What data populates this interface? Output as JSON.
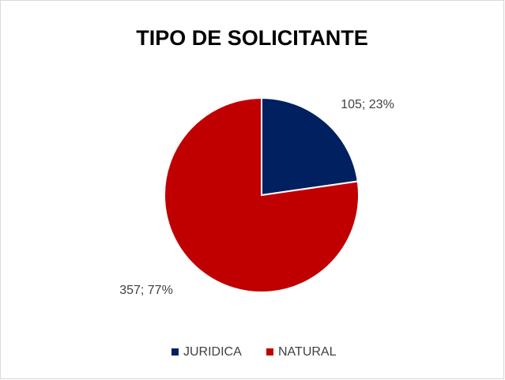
{
  "chart_data": {
    "type": "pie",
    "title": "TIPO DE SOLICITANTE",
    "categories": [
      "JURIDICA",
      "NATURAL"
    ],
    "values": [
      105,
      357
    ],
    "value_labels": [
      "105; 23%",
      "357; 77%"
    ],
    "colors": [
      "#002060",
      "#c00000"
    ],
    "legend": "bottom"
  }
}
